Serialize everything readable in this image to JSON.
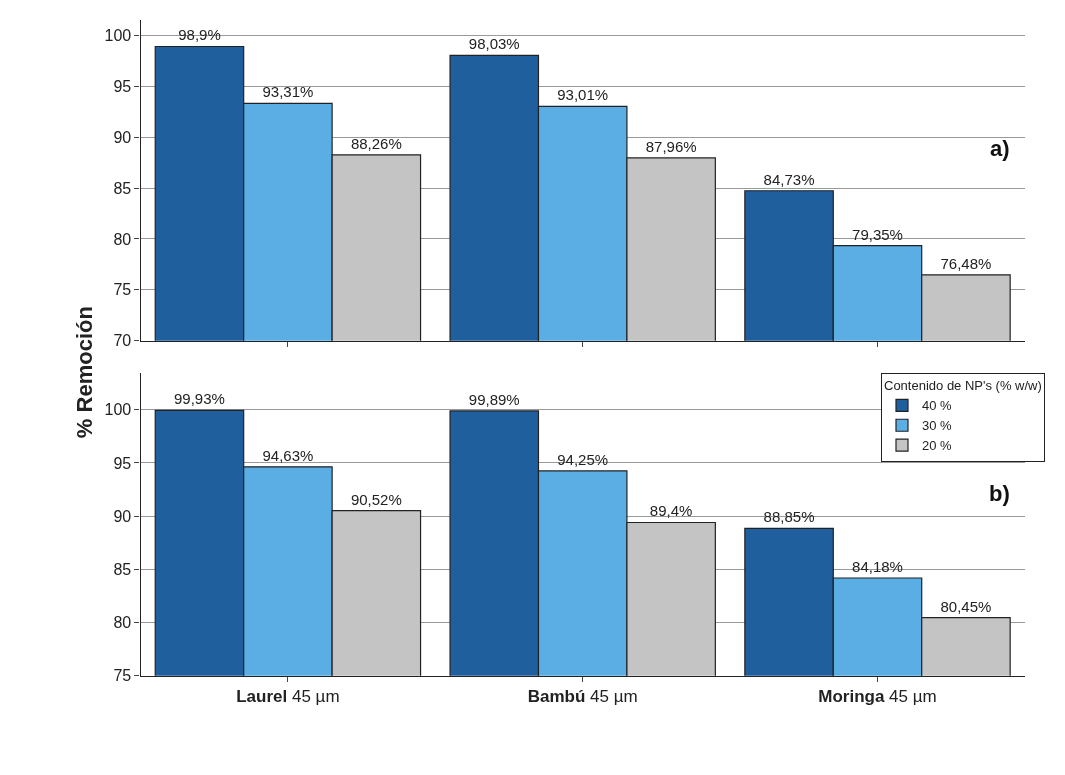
{
  "chart_data": [
    {
      "type": "bar",
      "categories": [
        null,
        null,
        null
      ],
      "tick_labels": "y",
      "ylim": [
        70,
        101.5
      ],
      "yticks": [
        70,
        75,
        80,
        85,
        90,
        95,
        100
      ],
      "grid": "y",
      "annotations": [
        "a)"
      ],
      "series": [
        {
          "color": "#1f5f9e",
          "values": [
            98.9,
            98.03,
            84.73
          ],
          "value_labels": [
            "98,9%",
            "98,03%",
            "84,73%"
          ]
        },
        {
          "color": "#5aaee3",
          "values": [
            93.31,
            93.01,
            79.35
          ],
          "value_labels": [
            "93,31%",
            "93,01%",
            "79,35%"
          ]
        },
        {
          "color": "#c4c4c4",
          "values": [
            88.26,
            87.96,
            76.48
          ],
          "value_labels": [
            "88,26%",
            "87,96%",
            "76,48%"
          ]
        }
      ]
    },
    {
      "type": "bar",
      "categories": [
        "Laurel 45 µm",
        "Bambú 45 µm",
        "Moringa 45 µm"
      ],
      "ylim": [
        75,
        103.5
      ],
      "yticks": [
        75,
        80,
        85,
        90,
        95,
        100
      ],
      "grid": "y",
      "ylabel": "% Remoción",
      "legend": "top right",
      "legend_title": "Contenido de NP's (% w/w)",
      "annotations": [
        "b)"
      ],
      "series": [
        {
          "name": "40 %",
          "color": "#1f5f9e",
          "values": [
            99.93,
            99.89,
            88.85
          ],
          "value_labels": [
            "99,93%",
            "99,89%",
            "88,85%"
          ]
        },
        {
          "name": "30 %",
          "color": "#5aaee3",
          "values": [
            94.63,
            94.25,
            84.18
          ],
          "value_labels": [
            "94,63%",
            "94,25%",
            "84,18%"
          ]
        },
        {
          "name": "20 %",
          "color": "#c4c4c4",
          "values": [
            90.52,
            89.4,
            80.45
          ],
          "value_labels": [
            "90,52%",
            "89,4%",
            "80,45%"
          ]
        }
      ]
    }
  ]
}
